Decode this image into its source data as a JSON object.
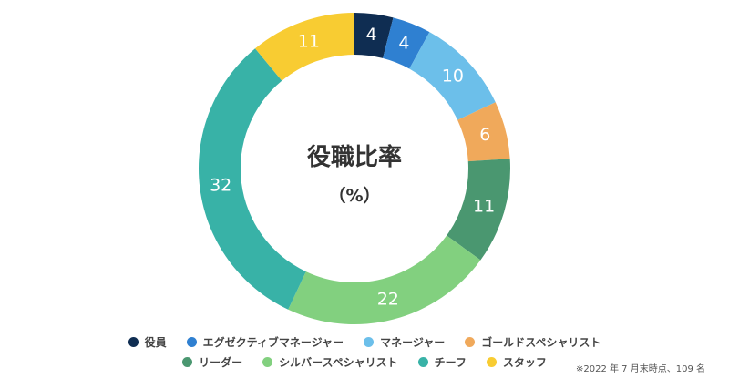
{
  "chart_data": {
    "type": "pie",
    "title": "役職比率",
    "subtitle": "（%）",
    "categories": [
      "役員",
      "エグゼクティブマネージャー",
      "マネージャー",
      "ゴールドスペシャリスト",
      "リーダー",
      "シルバースペシャリスト",
      "チーフ",
      "スタッフ"
    ],
    "values": [
      4,
      4,
      10,
      6,
      11,
      22,
      32,
      11
    ],
    "colors": [
      "#0f2d52",
      "#2f80d1",
      "#6cbfea",
      "#f0a95b",
      "#4a9770",
      "#82d07f",
      "#38b2a7",
      "#f8cc32"
    ],
    "legend_position": "bottom"
  },
  "legend": {
    "rows": [
      [
        0,
        1,
        2,
        3
      ],
      [
        4,
        5,
        6,
        7
      ]
    ]
  },
  "footnote": "※2022 年 7 月末時点、109 名"
}
